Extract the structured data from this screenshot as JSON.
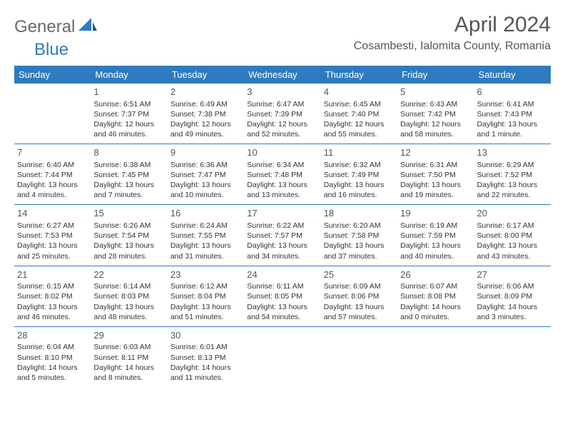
{
  "logo": {
    "general": "General",
    "blue": "Blue"
  },
  "title": "April 2024",
  "location": "Cosambesti, Ialomita County, Romania",
  "headers": [
    "Sunday",
    "Monday",
    "Tuesday",
    "Wednesday",
    "Thursday",
    "Friday",
    "Saturday"
  ],
  "colors": {
    "header_bg": "#2f7bbf",
    "header_fg": "#ffffff",
    "text": "#333333",
    "title": "#555555",
    "logo_gray": "#6a6a6a",
    "logo_blue": "#2f7bbf",
    "rule": "#2f7bbf"
  },
  "weeks": [
    [
      null,
      {
        "n": "1",
        "r": "Sunrise: 6:51 AM",
        "s": "Sunset: 7:37 PM",
        "d1": "Daylight: 12 hours",
        "d2": "and 46 minutes."
      },
      {
        "n": "2",
        "r": "Sunrise: 6:49 AM",
        "s": "Sunset: 7:38 PM",
        "d1": "Daylight: 12 hours",
        "d2": "and 49 minutes."
      },
      {
        "n": "3",
        "r": "Sunrise: 6:47 AM",
        "s": "Sunset: 7:39 PM",
        "d1": "Daylight: 12 hours",
        "d2": "and 52 minutes."
      },
      {
        "n": "4",
        "r": "Sunrise: 6:45 AM",
        "s": "Sunset: 7:40 PM",
        "d1": "Daylight: 12 hours",
        "d2": "and 55 minutes."
      },
      {
        "n": "5",
        "r": "Sunrise: 6:43 AM",
        "s": "Sunset: 7:42 PM",
        "d1": "Daylight: 12 hours",
        "d2": "and 58 minutes."
      },
      {
        "n": "6",
        "r": "Sunrise: 6:41 AM",
        "s": "Sunset: 7:43 PM",
        "d1": "Daylight: 13 hours",
        "d2": "and 1 minute."
      }
    ],
    [
      {
        "n": "7",
        "r": "Sunrise: 6:40 AM",
        "s": "Sunset: 7:44 PM",
        "d1": "Daylight: 13 hours",
        "d2": "and 4 minutes."
      },
      {
        "n": "8",
        "r": "Sunrise: 6:38 AM",
        "s": "Sunset: 7:45 PM",
        "d1": "Daylight: 13 hours",
        "d2": "and 7 minutes."
      },
      {
        "n": "9",
        "r": "Sunrise: 6:36 AM",
        "s": "Sunset: 7:47 PM",
        "d1": "Daylight: 13 hours",
        "d2": "and 10 minutes."
      },
      {
        "n": "10",
        "r": "Sunrise: 6:34 AM",
        "s": "Sunset: 7:48 PM",
        "d1": "Daylight: 13 hours",
        "d2": "and 13 minutes."
      },
      {
        "n": "11",
        "r": "Sunrise: 6:32 AM",
        "s": "Sunset: 7:49 PM",
        "d1": "Daylight: 13 hours",
        "d2": "and 16 minutes."
      },
      {
        "n": "12",
        "r": "Sunrise: 6:31 AM",
        "s": "Sunset: 7:50 PM",
        "d1": "Daylight: 13 hours",
        "d2": "and 19 minutes."
      },
      {
        "n": "13",
        "r": "Sunrise: 6:29 AM",
        "s": "Sunset: 7:52 PM",
        "d1": "Daylight: 13 hours",
        "d2": "and 22 minutes."
      }
    ],
    [
      {
        "n": "14",
        "r": "Sunrise: 6:27 AM",
        "s": "Sunset: 7:53 PM",
        "d1": "Daylight: 13 hours",
        "d2": "and 25 minutes."
      },
      {
        "n": "15",
        "r": "Sunrise: 6:26 AM",
        "s": "Sunset: 7:54 PM",
        "d1": "Daylight: 13 hours",
        "d2": "and 28 minutes."
      },
      {
        "n": "16",
        "r": "Sunrise: 6:24 AM",
        "s": "Sunset: 7:55 PM",
        "d1": "Daylight: 13 hours",
        "d2": "and 31 minutes."
      },
      {
        "n": "17",
        "r": "Sunrise: 6:22 AM",
        "s": "Sunset: 7:57 PM",
        "d1": "Daylight: 13 hours",
        "d2": "and 34 minutes."
      },
      {
        "n": "18",
        "r": "Sunrise: 6:20 AM",
        "s": "Sunset: 7:58 PM",
        "d1": "Daylight: 13 hours",
        "d2": "and 37 minutes."
      },
      {
        "n": "19",
        "r": "Sunrise: 6:19 AM",
        "s": "Sunset: 7:59 PM",
        "d1": "Daylight: 13 hours",
        "d2": "and 40 minutes."
      },
      {
        "n": "20",
        "r": "Sunrise: 6:17 AM",
        "s": "Sunset: 8:00 PM",
        "d1": "Daylight: 13 hours",
        "d2": "and 43 minutes."
      }
    ],
    [
      {
        "n": "21",
        "r": "Sunrise: 6:15 AM",
        "s": "Sunset: 8:02 PM",
        "d1": "Daylight: 13 hours",
        "d2": "and 46 minutes."
      },
      {
        "n": "22",
        "r": "Sunrise: 6:14 AM",
        "s": "Sunset: 8:03 PM",
        "d1": "Daylight: 13 hours",
        "d2": "and 48 minutes."
      },
      {
        "n": "23",
        "r": "Sunrise: 6:12 AM",
        "s": "Sunset: 8:04 PM",
        "d1": "Daylight: 13 hours",
        "d2": "and 51 minutes."
      },
      {
        "n": "24",
        "r": "Sunrise: 6:11 AM",
        "s": "Sunset: 8:05 PM",
        "d1": "Daylight: 13 hours",
        "d2": "and 54 minutes."
      },
      {
        "n": "25",
        "r": "Sunrise: 6:09 AM",
        "s": "Sunset: 8:06 PM",
        "d1": "Daylight: 13 hours",
        "d2": "and 57 minutes."
      },
      {
        "n": "26",
        "r": "Sunrise: 6:07 AM",
        "s": "Sunset: 8:08 PM",
        "d1": "Daylight: 14 hours",
        "d2": "and 0 minutes."
      },
      {
        "n": "27",
        "r": "Sunrise: 6:06 AM",
        "s": "Sunset: 8:09 PM",
        "d1": "Daylight: 14 hours",
        "d2": "and 3 minutes."
      }
    ],
    [
      {
        "n": "28",
        "r": "Sunrise: 6:04 AM",
        "s": "Sunset: 8:10 PM",
        "d1": "Daylight: 14 hours",
        "d2": "and 5 minutes."
      },
      {
        "n": "29",
        "r": "Sunrise: 6:03 AM",
        "s": "Sunset: 8:11 PM",
        "d1": "Daylight: 14 hours",
        "d2": "and 8 minutes."
      },
      {
        "n": "30",
        "r": "Sunrise: 6:01 AM",
        "s": "Sunset: 8:13 PM",
        "d1": "Daylight: 14 hours",
        "d2": "and 11 minutes."
      },
      null,
      null,
      null,
      null
    ]
  ]
}
